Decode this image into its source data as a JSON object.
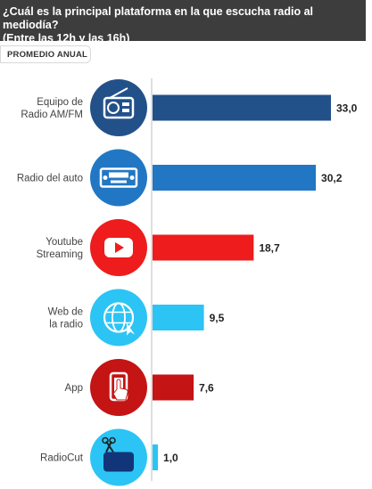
{
  "header": {
    "title_line1": "¿Cuál es la principal plataforma en la que escucha radio al mediodía?",
    "title_line2": "(Entre las 12h y las 16h)"
  },
  "badge": {
    "label": "PROMEDIO ANUAL"
  },
  "chart_data": {
    "type": "bar",
    "orientation": "horizontal",
    "title": "¿Cuál es la principal plataforma en la que escucha radio al mediodía? (Entre las 12h y las 16h)",
    "subtitle": "PROMEDIO ANUAL",
    "categories": [
      [
        "Equipo de",
        "Radio AM/FM"
      ],
      [
        "Radio del auto"
      ],
      [
        "Youtube",
        "Streaming"
      ],
      [
        "Web de",
        "la radio"
      ],
      [
        "App"
      ],
      [
        "RadioCut"
      ]
    ],
    "values": [
      33.0,
      30.2,
      18.7,
      9.5,
      7.6,
      1.0
    ],
    "value_labels": [
      "33,0",
      "30,2",
      "18,7",
      "9,5",
      "7,6",
      "1,0"
    ],
    "icons": [
      "radio-icon",
      "car-radio-icon",
      "youtube-icon",
      "web-globe-icon",
      "app-phone-icon",
      "radiocut-icon"
    ],
    "colors": [
      "#22518a",
      "#2277c4",
      "#ee1c1c",
      "#2cc4f4",
      "#c41414",
      "#2cc4f4"
    ],
    "xlim": [
      0,
      33.0
    ],
    "grid": false,
    "legend": "none"
  }
}
